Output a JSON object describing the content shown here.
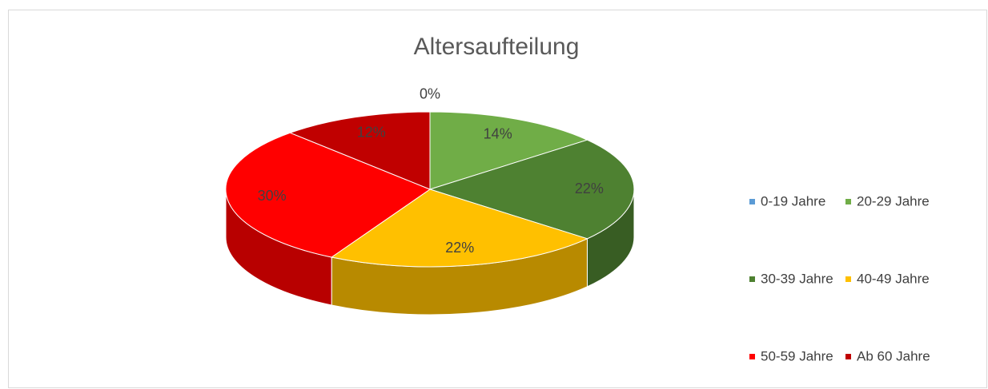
{
  "chart_data": {
    "type": "pie",
    "title": "Altersaufteilung",
    "categories": [
      "0-19 Jahre",
      "20-29 Jahre",
      "30-39 Jahre",
      "40-49 Jahre",
      "50-59 Jahre",
      "Ab 60 Jahre"
    ],
    "values": [
      0,
      14,
      22,
      22,
      30,
      12
    ],
    "value_labels": [
      "0%",
      "14%",
      "22%",
      "22%",
      "30%",
      "12%"
    ],
    "colors": [
      "#5b9bd5",
      "#70ad47",
      "#4e8131",
      "#ffc000",
      "#ff0000",
      "#c00000"
    ],
    "legend": "right"
  }
}
